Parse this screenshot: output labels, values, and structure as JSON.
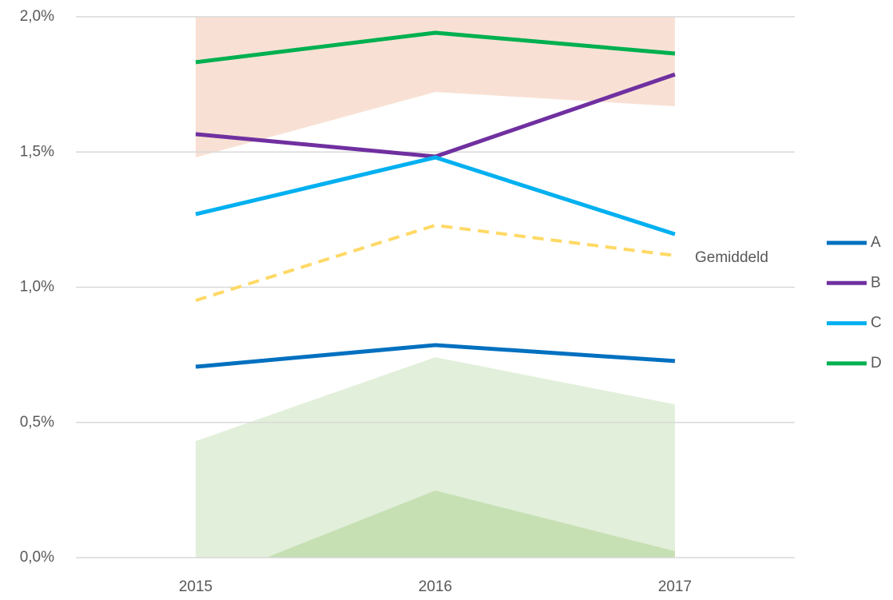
{
  "chart_data": {
    "type": "line",
    "categories": [
      "2015",
      "2016",
      "2017"
    ],
    "ylim": [
      0,
      2.0
    ],
    "yticks": [
      {
        "value": 0,
        "label": "0,0%"
      },
      {
        "value": 0.5,
        "label": "0,5%"
      },
      {
        "value": 1.0,
        "label": "1,0%"
      },
      {
        "value": 1.5,
        "label": "1,5%"
      },
      {
        "value": 2.0,
        "label": "2,0%"
      }
    ],
    "grid": true,
    "legend": "right",
    "bands": [
      {
        "color": "#f8e1d4",
        "upper": [
          2.0,
          2.0,
          2.0
        ],
        "lower": [
          1.48,
          1.722,
          1.669
        ]
      },
      {
        "color": "#e2efda",
        "upper": [
          0.431,
          0.741,
          0.567
        ],
        "lower": [
          0,
          0,
          0
        ]
      },
      {
        "color": "#c6e0b4",
        "upper": [
          -0.103,
          0.248,
          0.024
        ],
        "lower": [
          -0.2,
          0,
          -0.2
        ]
      }
    ],
    "average": {
      "name": "Gemiddeld",
      "color": "#ffd966",
      "values": [
        0.951,
        1.229,
        1.117
      ]
    },
    "series": [
      {
        "name": "A",
        "color": "#0070c0",
        "values": [
          0.706,
          0.786,
          0.727
        ]
      },
      {
        "name": "B",
        "color": "#7030a0",
        "values": [
          1.566,
          1.483,
          1.787
        ]
      },
      {
        "name": "C",
        "color": "#00b0f0",
        "values": [
          1.27,
          1.48,
          1.196
        ]
      },
      {
        "name": "D",
        "color": "#00b050",
        "values": [
          1.832,
          1.941,
          1.864
        ]
      }
    ]
  }
}
